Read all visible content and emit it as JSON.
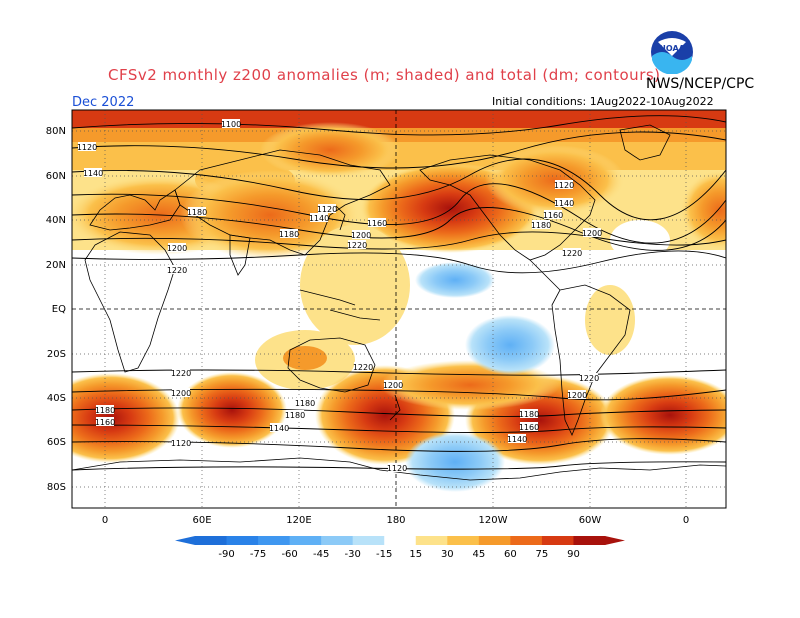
{
  "title": "CFSv2 monthly z200 anomalies (m; shaded) and total (dm; contours)",
  "agency": "NWS/NCEP/CPC",
  "valid_month": "Dec 2022",
  "initial_conditions": "Initial conditions: 1Aug2022-10Aug2022",
  "logo_text": "NOAA",
  "lat_labels": [
    "80N",
    "60N",
    "40N",
    "20N",
    "EQ",
    "20S",
    "40S",
    "60S",
    "80S"
  ],
  "lon_labels": [
    "0",
    "60E",
    "120E",
    "180",
    "120W",
    "60W",
    "0"
  ],
  "colorbar": {
    "labels": [
      "-90",
      "-75",
      "-60",
      "-45",
      "-30",
      "-15",
      "15",
      "30",
      "45",
      "60",
      "75",
      "90"
    ],
    "colors": [
      "#1e6fd9",
      "#2a82e8",
      "#3f97f0",
      "#5fb0f5",
      "#8ccaf7",
      "#b8e2f9",
      "#ffffff",
      "#fde28a",
      "#fbc04a",
      "#f59a2b",
      "#ec6a1a",
      "#d73a12",
      "#a8120c"
    ]
  },
  "contour_labels": [
    {
      "text": "1100"
    },
    {
      "text": "1120"
    },
    {
      "text": "1140"
    },
    {
      "text": "1160"
    },
    {
      "text": "1180"
    },
    {
      "text": "1200"
    },
    {
      "text": "1220"
    }
  ]
}
